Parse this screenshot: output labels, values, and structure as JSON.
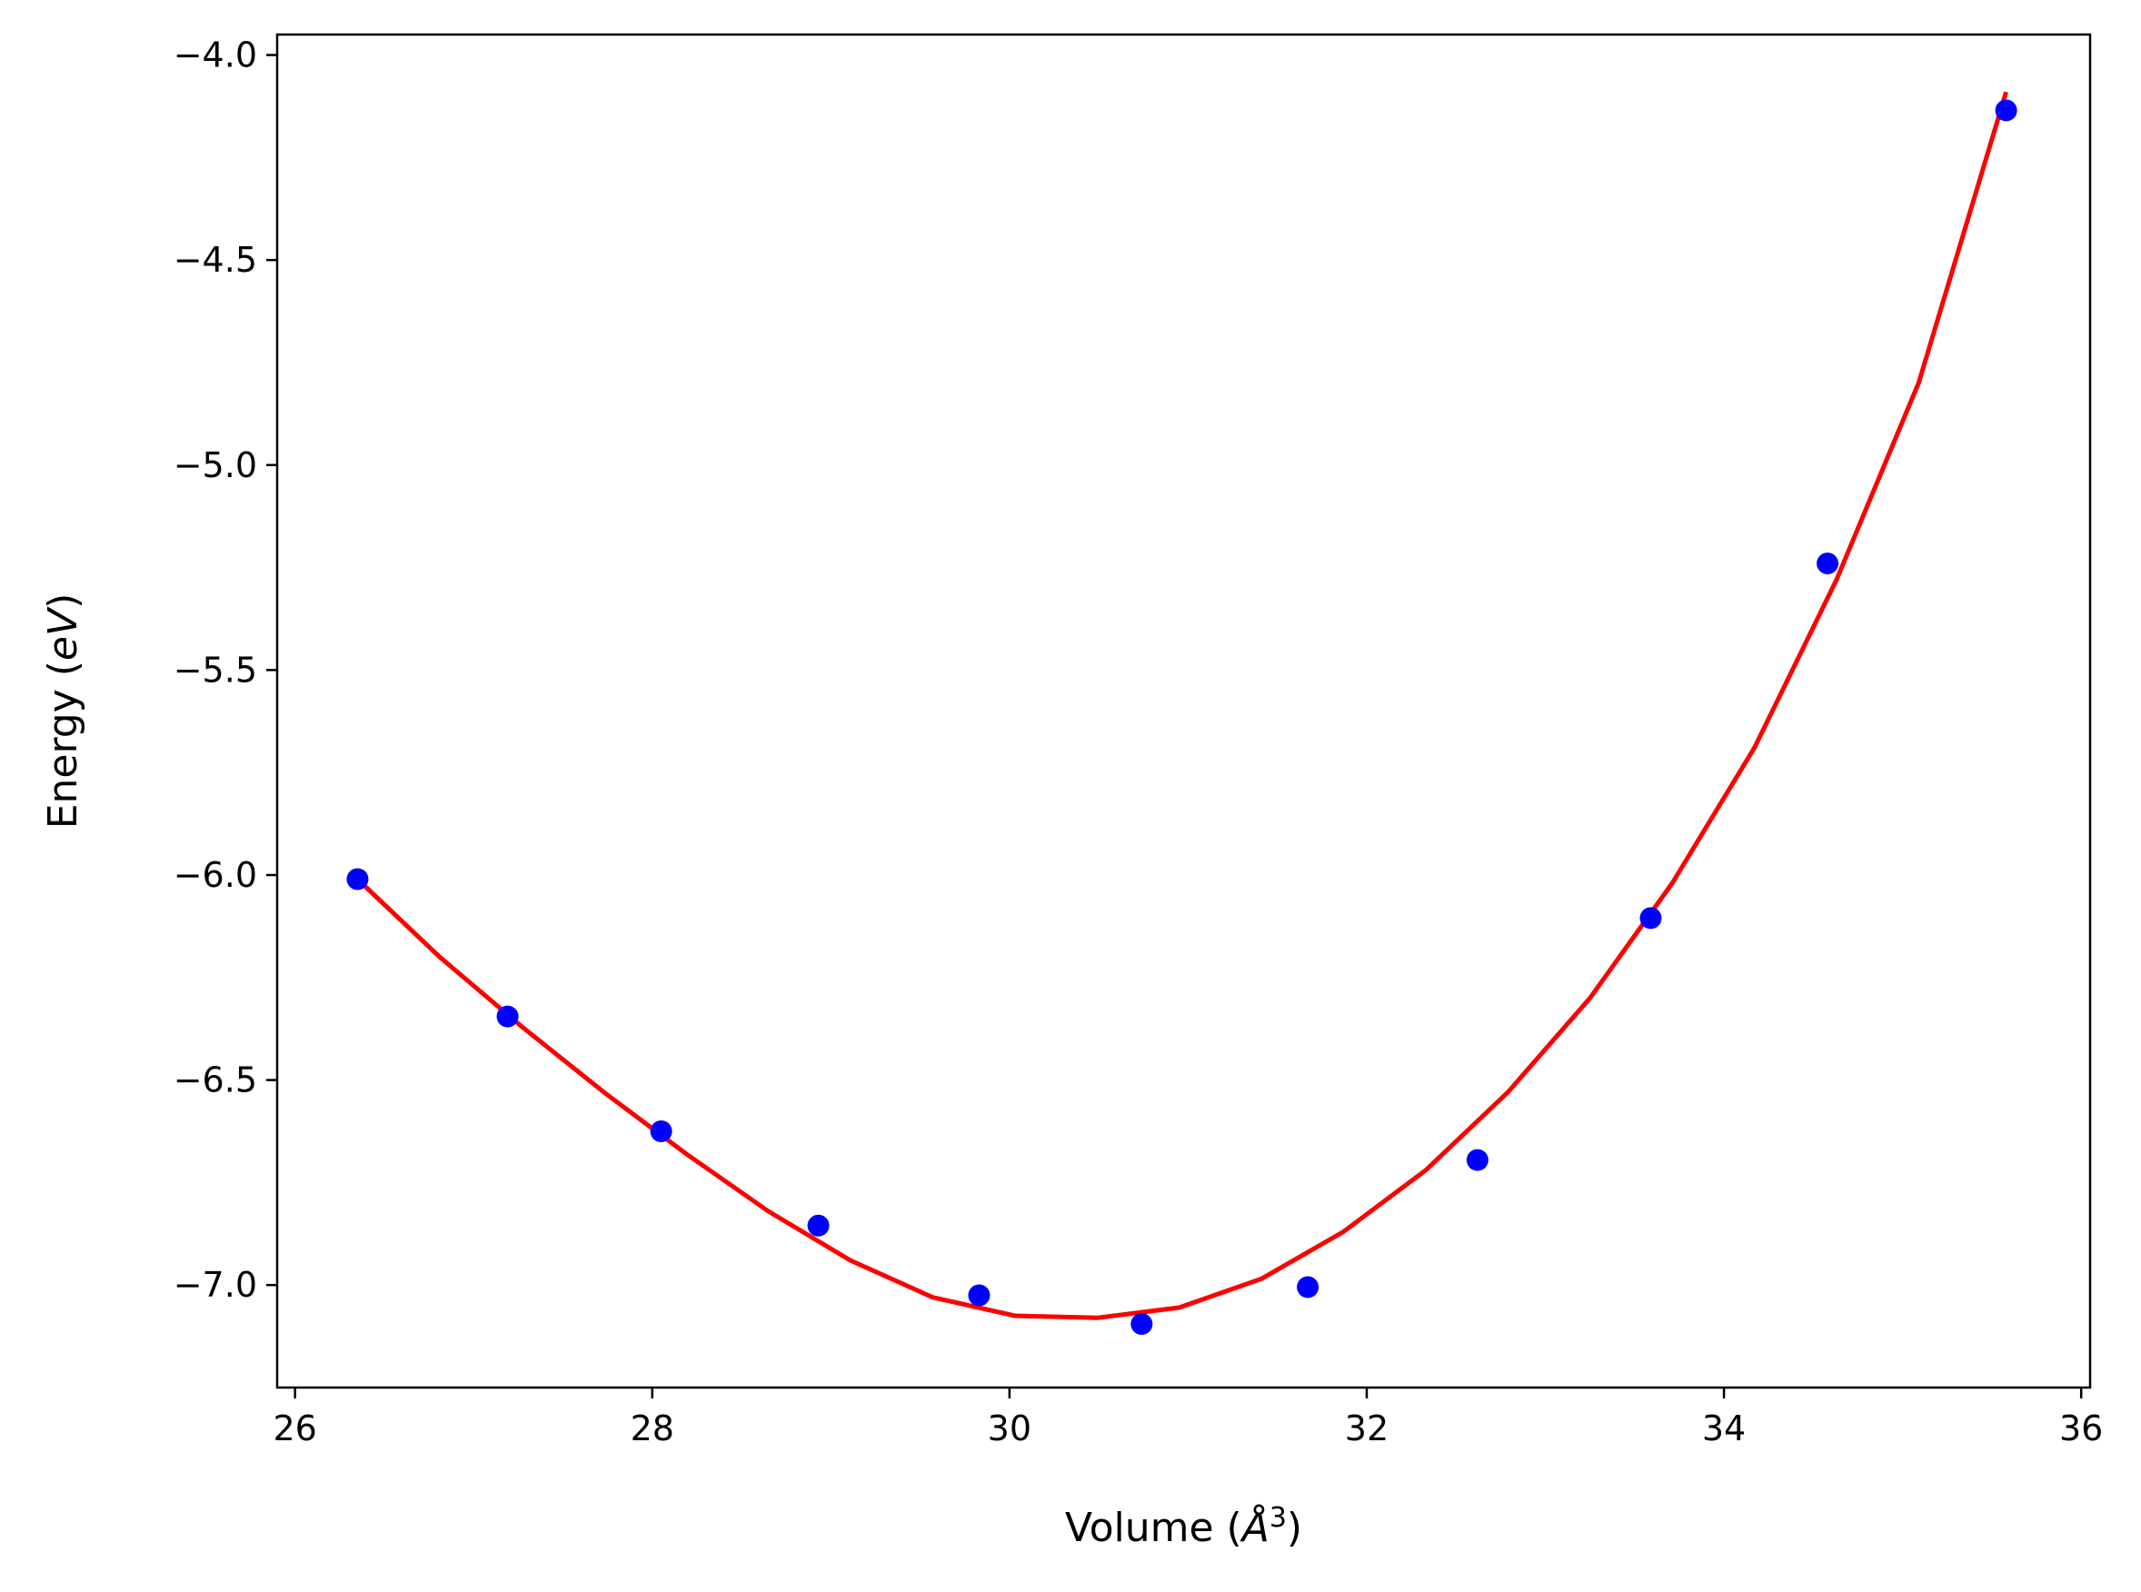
{
  "chart_data": {
    "type": "scatter",
    "title": "",
    "xlabel": "Volume (Å³)",
    "ylabel": "Energy (eV)",
    "xlabel_parts": {
      "before": "Volume (",
      "italic": "Å",
      "sup": "3",
      "after": ")"
    },
    "ylabel_parts": {
      "before": "Energy (",
      "italic": "eV",
      "after": ")"
    },
    "xlim": [
      25.9,
      36.05
    ],
    "ylim": [
      -7.25,
      -3.95
    ],
    "xticks": [
      26,
      28,
      30,
      32,
      34,
      36
    ],
    "yticks": [
      -4.0,
      -4.5,
      -5.0,
      -5.5,
      -6.0,
      -6.5,
      -7.0
    ],
    "xtick_labels": [
      "26",
      "28",
      "30",
      "32",
      "34",
      "36"
    ],
    "ytick_labels": [
      "−4.0",
      "−4.5",
      "−5.0",
      "−5.5",
      "−6.0",
      "−6.5",
      "−7.0"
    ],
    "grid": false,
    "series": [
      {
        "kind": "points",
        "color": "#0000ff",
        "x": [
          26.35,
          27.19,
          28.05,
          28.93,
          29.83,
          30.74,
          31.67,
          32.62,
          33.59,
          34.58,
          35.58
        ],
        "y": [
          -6.01,
          -6.345,
          -6.625,
          -6.855,
          -7.025,
          -7.095,
          -7.005,
          -6.695,
          -6.105,
          -5.24,
          -4.135
        ]
      },
      {
        "kind": "fit-curve",
        "color": "#ff0000",
        "x": [
          26.35,
          26.81,
          27.27,
          27.73,
          28.19,
          28.65,
          29.11,
          29.57,
          30.03,
          30.49,
          30.95,
          31.41,
          31.87,
          32.33,
          32.79,
          33.25,
          33.71,
          34.17,
          34.63,
          35.09,
          35.58
        ],
        "y": [
          -6.01,
          -6.2,
          -6.37,
          -6.53,
          -6.68,
          -6.82,
          -6.94,
          -7.03,
          -7.075,
          -7.08,
          -7.055,
          -6.985,
          -6.87,
          -6.72,
          -6.53,
          -6.3,
          -6.02,
          -5.69,
          -5.28,
          -4.8,
          -4.09
        ]
      }
    ]
  }
}
